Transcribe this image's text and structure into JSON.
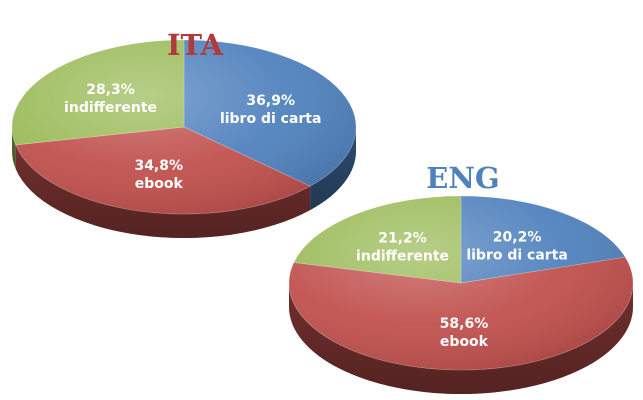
{
  "chart_data": [
    {
      "type": "pie",
      "title": "ITA",
      "title_color": "#b23a3a",
      "slices": [
        {
          "label": "libro di carta",
          "value_text": "36,9%",
          "value": 36.9,
          "color": "#4f81bd"
        },
        {
          "label": "ebook",
          "value_text": "34,8%",
          "value": 34.8,
          "color": "#c0504d"
        },
        {
          "label": "indifferente",
          "value_text": "28,3%",
          "value": 28.3,
          "color": "#9bbb59"
        }
      ]
    },
    {
      "type": "pie",
      "title": "ENG",
      "title_color": "#4f81bd",
      "slices": [
        {
          "label": "libro di carta",
          "value_text": "20,2%",
          "value": 20.2,
          "color": "#4f81bd"
        },
        {
          "label": "ebook",
          "value_text": "58,6%",
          "value": 58.6,
          "color": "#c0504d"
        },
        {
          "label": "indifferente",
          "value_text": "21,2%",
          "value": 21.2,
          "color": "#9bbb59"
        }
      ]
    }
  ]
}
